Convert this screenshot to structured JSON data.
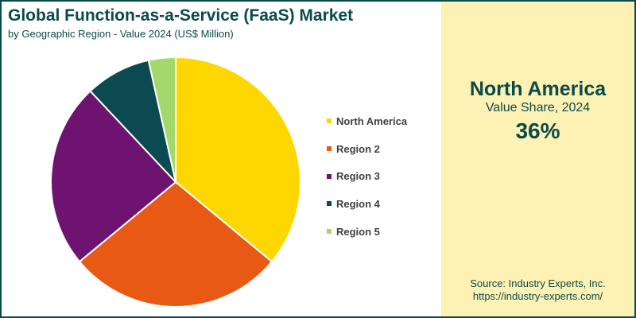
{
  "chart_data": {
    "type": "pie",
    "title": "Global Function-as-a-Service (FaaS) Market",
    "subtitle": "by Geographic Region - Value 2024 (US$ Million)",
    "categories": [
      "North America",
      "Region 2",
      "Region 3",
      "Region 4",
      "Region 5"
    ],
    "values": [
      36,
      28,
      24,
      8.5,
      3.5
    ],
    "colors": [
      "#ffd700",
      "#e85a14",
      "#6e1470",
      "#0b4a50",
      "#a3d96b"
    ],
    "legend_position": "right"
  },
  "highlight": {
    "region": "North America",
    "label": "Value Share, 2024",
    "value": "36%"
  },
  "source": {
    "line1": "Source: Industry Experts, Inc.",
    "line2": "https://industry-experts.com/"
  }
}
